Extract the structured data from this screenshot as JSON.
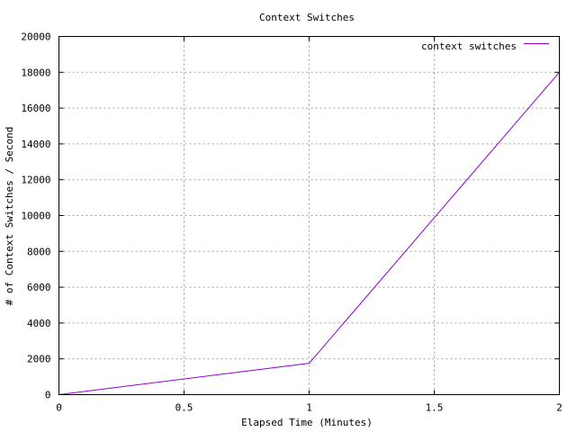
{
  "chart_data": {
    "type": "line",
    "title": "Context Switches",
    "xlabel": "Elapsed Time (Minutes)",
    "ylabel": "# of Context Switches / Second",
    "xlim": [
      0,
      2
    ],
    "ylim": [
      0,
      20000
    ],
    "x_ticks": [
      0,
      0.5,
      1,
      1.5,
      2
    ],
    "x_tick_labels": [
      "0",
      "0.5",
      "1",
      "1.5",
      "2"
    ],
    "y_ticks": [
      0,
      2000,
      4000,
      6000,
      8000,
      10000,
      12000,
      14000,
      16000,
      18000,
      20000
    ],
    "y_tick_labels": [
      "0",
      "2000",
      "4000",
      "6000",
      "8000",
      "10000",
      "12000",
      "14000",
      "16000",
      "18000",
      "20000"
    ],
    "grid": true,
    "legend_position": "top-right",
    "series": [
      {
        "name": "context switches",
        "color": "#9400d3",
        "points": [
          {
            "x": 0,
            "y": 0
          },
          {
            "x": 1,
            "y": 1750
          },
          {
            "x": 2,
            "y": 18000
          }
        ]
      }
    ]
  }
}
